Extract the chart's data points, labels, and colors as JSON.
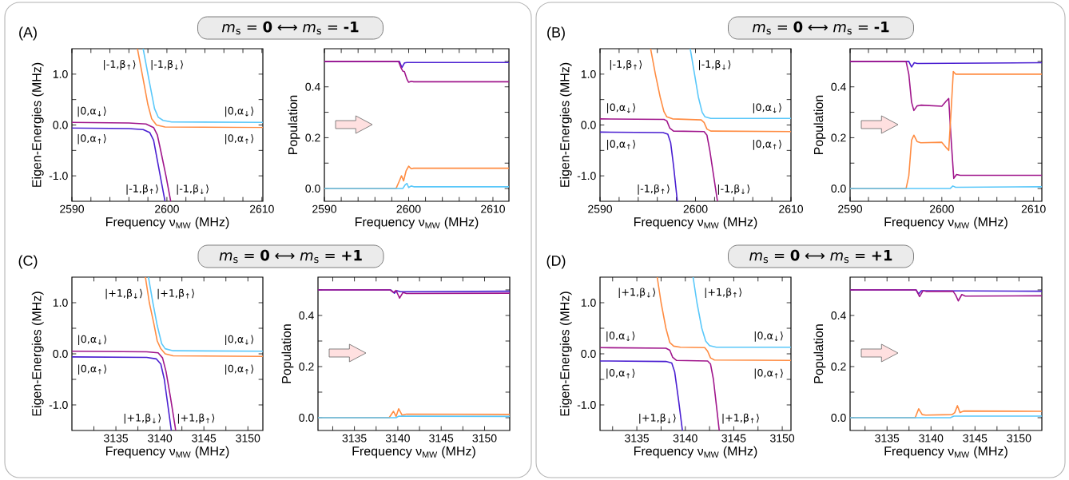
{
  "chart_data": [
    {
      "type": "line",
      "title": "(A)",
      "subtitle": "*m*$_{s}$ = **0** ⟷ *m*$_{s}$ = **-1**",
      "xlabel": "Frequency ν$_{MW}$ (MHz)",
      "ylabel": "Eigen-Energies (MHz)",
      "xlim": [
        2590,
        2610.1
      ],
      "ylim": [
        -1.5,
        1.5
      ],
      "xticks": [
        2590,
        {
          "value": 2592,
          "label": null
        },
        {
          "value": 2594,
          "label": null
        },
        {
          "value": 2596,
          "label": null
        },
        {
          "value": 2598,
          "label": null
        },
        2600,
        {
          "value": 2602,
          "label": null
        },
        {
          "value": 2604,
          "label": null
        },
        {
          "value": 2606,
          "label": null
        },
        {
          "value": 2608,
          "label": null
        },
        2610
      ],
      "yticks": [
        {
          "value": -1.0,
          "label": "-1.0"
        },
        {
          "value": -0.5,
          "label": null
        },
        {
          "value": 0,
          "label": "0.0"
        },
        {
          "value": 0.5,
          "label": null
        },
        {
          "value": 1.0,
          "label": "1.0"
        }
      ],
      "series": [
        {
          "color": "#4a1fd1",
          "x": [
            2590,
            2596,
            2597.5,
            2598.2,
            2598.6,
            2599.0,
            2599.4,
            2599.8
          ],
          "values": [
            -0.06,
            -0.07,
            -0.09,
            -0.15,
            -0.3,
            -0.7,
            -1.1,
            -1.5
          ]
        },
        {
          "color": "#a0168c",
          "x": [
            2590,
            2596,
            2597.8,
            2598.6,
            2599.0,
            2599.4,
            2599.9,
            2600.4
          ],
          "values": [
            0.05,
            0.04,
            0.02,
            -0.05,
            -0.2,
            -0.55,
            -1.0,
            -1.5
          ]
        },
        {
          "color": "#ff8c42",
          "x": [
            2596.9,
            2597.5,
            2598.0,
            2598.4,
            2598.9,
            2599.8,
            2610.1
          ],
          "values": [
            1.5,
            0.9,
            0.4,
            0.12,
            0.0,
            -0.04,
            -0.05
          ]
        },
        {
          "color": "#5ac8fa",
          "x": [
            2597.5,
            2598.1,
            2598.7,
            2599.1,
            2599.6,
            2600.5,
            2610.1
          ],
          "values": [
            1.5,
            0.9,
            0.32,
            0.15,
            0.09,
            0.06,
            0.05
          ]
        }
      ],
      "annotations": [
        "|-1,β$_{↑}$⟩",
        "|-1,β$_{↓}$⟩",
        "|0,α$_{↓}$⟩",
        "|0,α$_{↓}$⟩",
        "|0,α$_{↑}$⟩",
        "|0,α$_{↑}$⟩",
        "|-1,β$_{↑}$⟩",
        "|-1,β$_{↓}$⟩"
      ]
    },
    {
      "type": "line",
      "xlabel": "Frequency ν$_{MW}$ (MHz)",
      "ylabel": "Population",
      "xlim": [
        2590,
        2611.9
      ],
      "ylim": [
        -0.05,
        0.55
      ],
      "xticks": [
        2590,
        {
          "value": 2592,
          "label": null
        },
        {
          "value": 2594,
          "label": null
        },
        {
          "value": 2596,
          "label": null
        },
        {
          "value": 2598,
          "label": null
        },
        2600,
        {
          "value": 2602,
          "label": null
        },
        {
          "value": 2604,
          "label": null
        },
        {
          "value": 2606,
          "label": null
        },
        {
          "value": 2608,
          "label": null
        },
        2610
      ],
      "yticks": [
        {
          "value": 0,
          "label": "0.0"
        },
        {
          "value": 0.1,
          "label": null
        },
        {
          "value": 0.2,
          "label": "0.2"
        },
        {
          "value": 0.3,
          "label": null
        },
        {
          "value": 0.4,
          "label": "0.4"
        },
        {
          "value": 0.5,
          "label": null
        }
      ],
      "series": [
        {
          "color": "#4a1fd1",
          "x": [
            2590,
            2598.9,
            2599.2,
            2599.5,
            2599.8,
            2611.9
          ],
          "values": [
            0.5,
            0.5,
            0.476,
            0.494,
            0.496,
            0.496
          ]
        },
        {
          "color": "#a0168c",
          "x": [
            2590,
            2598.8,
            2599.1,
            2599.3,
            2599.5,
            2599.8,
            2600.0,
            2600.3,
            2600.6,
            2611.9
          ],
          "values": [
            0.5,
            0.5,
            0.475,
            0.462,
            0.46,
            0.43,
            0.418,
            0.422,
            0.42,
            0.42
          ]
        },
        {
          "color": "#ff8c42",
          "x": [
            2590,
            2598.5,
            2598.9,
            2599.15,
            2599.4,
            2599.7,
            2600.0,
            2600.3,
            2600.6,
            2611.9
          ],
          "values": [
            0,
            0,
            0.03,
            0.05,
            0.03,
            0.07,
            0.088,
            0.078,
            0.08,
            0.08
          ]
        },
        {
          "color": "#5ac8fa",
          "x": [
            2590,
            2599.3,
            2599.6,
            2599.8,
            2600.0,
            2600.3,
            2600.6,
            2611.9
          ],
          "values": [
            0,
            0,
            0.015,
            0.02,
            0.004,
            0.01,
            0.007,
            0.007
          ]
        }
      ]
    },
    {
      "type": "line",
      "title": "(B)",
      "subtitle": "*m*$_{s}$ = **0** ⟷ *m*$_{s}$ = **-1**",
      "xlabel": "Frequency ν$_{MW}$ (MHz)",
      "ylabel": "Eigen-Energies (MHz)",
      "xlim": [
        2590,
        2610
      ],
      "ylim": [
        -1.5,
        1.5
      ],
      "xticks": [
        2590,
        {
          "value": 2592,
          "label": null
        },
        {
          "value": 2594,
          "label": null
        },
        {
          "value": 2596,
          "label": null
        },
        {
          "value": 2598,
          "label": null
        },
        2600,
        {
          "value": 2602,
          "label": null
        },
        {
          "value": 2604,
          "label": null
        },
        {
          "value": 2606,
          "label": null
        },
        {
          "value": 2608,
          "label": null
        },
        2610
      ],
      "yticks": [
        {
          "value": -1.0,
          "label": "-1.0"
        },
        {
          "value": -0.5,
          "label": null
        },
        {
          "value": 0,
          "label": "0.0"
        },
        {
          "value": 0.5,
          "label": null
        },
        {
          "value": 1.0,
          "label": "1.0"
        }
      ],
      "series": [
        {
          "color": "#4a1fd1",
          "x": [
            2590,
            2596.6,
            2597.1,
            2597.4,
            2597.7,
            2598.1
          ],
          "values": [
            -0.14,
            -0.15,
            -0.18,
            -0.35,
            -0.8,
            -1.5
          ]
        },
        {
          "color": "#a0168c",
          "x": [
            2590,
            2596.7,
            2597.0,
            2597.3,
            2597.7,
            2600.9,
            2601.2,
            2601.5,
            2601.9,
            2602.3
          ],
          "values": [
            0.12,
            0.11,
            0.08,
            -0.06,
            -0.12,
            -0.13,
            -0.2,
            -0.5,
            -1.0,
            -1.5
          ]
        },
        {
          "color": "#ff8c42",
          "x": [
            2595.3,
            2595.8,
            2596.3,
            2596.7,
            2597.0,
            2597.6,
            2600.6,
            2600.9,
            2601.2,
            2601.6,
            2610
          ],
          "values": [
            1.5,
            1.0,
            0.55,
            0.26,
            0.16,
            0.12,
            0.1,
            0.05,
            -0.08,
            -0.12,
            -0.13
          ]
        },
        {
          "color": "#5ac8fa",
          "x": [
            2599.45,
            2599.9,
            2600.3,
            2600.7,
            2601.0,
            2601.6,
            2610
          ],
          "values": [
            1.5,
            1.0,
            0.55,
            0.25,
            0.16,
            0.13,
            0.13
          ]
        }
      ],
      "annotations": [
        "|-1,β$_{↑}$⟩",
        "|-1,β$_{↓}$⟩",
        "|0,α$_{↓}$⟩",
        "|0,α$_{↓}$⟩",
        "|0,α$_{↑}$⟩",
        "|0,α$_{↑}$⟩",
        "|-1,β$_{↑}$⟩",
        "|-1,β$_{↓}$⟩"
      ]
    },
    {
      "type": "line",
      "xlabel": "Frequency ν$_{MW}$ (MHz)",
      "ylabel": "Population",
      "xlim": [
        2590,
        2610.9
      ],
      "ylim": [
        -0.05,
        0.55
      ],
      "xticks": [
        2590,
        {
          "value": 2592,
          "label": null
        },
        {
          "value": 2594,
          "label": null
        },
        {
          "value": 2596,
          "label": null
        },
        {
          "value": 2598,
          "label": null
        },
        2600,
        {
          "value": 2602,
          "label": null
        },
        {
          "value": 2604,
          "label": null
        },
        {
          "value": 2606,
          "label": null
        },
        {
          "value": 2608,
          "label": null
        },
        2610
      ],
      "yticks": [
        {
          "value": 0,
          "label": "0.0"
        },
        {
          "value": 0.1,
          "label": null
        },
        {
          "value": 0.2,
          "label": "0.2"
        },
        {
          "value": 0.3,
          "label": null
        },
        {
          "value": 0.4,
          "label": "0.4"
        },
        {
          "value": 0.5,
          "label": null
        }
      ],
      "series": [
        {
          "color": "#4a1fd1",
          "x": [
            2590,
            2596.4,
            2596.7,
            2597.0,
            2597.3,
            2610.9
          ],
          "values": [
            0.5,
            0.5,
            0.478,
            0.495,
            0.492,
            0.495
          ]
        },
        {
          "color": "#a0168c",
          "x": [
            2590,
            2596.1,
            2596.4,
            2596.7,
            2596.95,
            2597.3,
            2597.7,
            2600.0,
            2600.5,
            2600.75,
            2601.0,
            2601.3,
            2601.6,
            2602,
            2610.9
          ],
          "values": [
            0.5,
            0.5,
            0.45,
            0.34,
            0.307,
            0.325,
            0.328,
            0.324,
            0.345,
            0.354,
            0.2,
            0.04,
            0.055,
            0.052,
            0.052
          ]
        },
        {
          "color": "#ff8c42",
          "x": [
            2590,
            2596.1,
            2596.4,
            2596.7,
            2596.95,
            2597.3,
            2597.7,
            2600.0,
            2600.5,
            2600.75,
            2601.0,
            2601.25,
            2601.5,
            2610.9
          ],
          "values": [
            0,
            0,
            0.05,
            0.19,
            0.21,
            0.185,
            0.18,
            0.182,
            0.16,
            0.15,
            0.3,
            0.46,
            0.45,
            0.45
          ]
        },
        {
          "color": "#5ac8fa",
          "x": [
            2590,
            2600.9,
            2601.2,
            2601.5,
            2610.9
          ],
          "values": [
            0,
            0,
            0.01,
            0.005,
            0.007
          ]
        }
      ]
    },
    {
      "type": "line",
      "title": "(C)",
      "subtitle": "*m*$_{s}$ = **0** ⟷ *m*$_{s}$ = **+1**",
      "xlabel": "Frequency ν$_{MW}$ (MHz)",
      "ylabel": "Eigen-Energies (MHz)",
      "xlim": [
        3130,
        3151.7
      ],
      "ylim": [
        -1.5,
        1.5
      ],
      "xticks": [
        {
          "value": 3132.5,
          "label": null
        },
        3135,
        {
          "value": 3137.5,
          "label": null
        },
        3140,
        {
          "value": 3142.5,
          "label": null
        },
        3145,
        {
          "value": 3147.5,
          "label": null
        },
        3150
      ],
      "yticks": [
        {
          "value": -1.0,
          "label": "-1.0"
        },
        {
          "value": -0.5,
          "label": null
        },
        {
          "value": 0,
          "label": "0.0"
        },
        {
          "value": 0.5,
          "label": null
        },
        {
          "value": 1.0,
          "label": "1.0"
        }
      ],
      "series": [
        {
          "color": "#4a1fd1",
          "x": [
            3130,
            3138.5,
            3139.6,
            3140.1,
            3140.5,
            3140.9,
            3141.3
          ],
          "values": [
            -0.06,
            -0.07,
            -0.1,
            -0.2,
            -0.5,
            -1.0,
            -1.5
          ]
        },
        {
          "color": "#a0168c",
          "x": [
            3130,
            3138.5,
            3139.8,
            3140.3,
            3140.7,
            3141.2,
            3141.8
          ],
          "values": [
            0.05,
            0.04,
            0.02,
            -0.08,
            -0.35,
            -0.85,
            -1.5
          ]
        },
        {
          "color": "#ff8c42",
          "x": [
            3138.35,
            3138.8,
            3139.3,
            3139.7,
            3140.1,
            3140.6,
            3141.5,
            3151.7
          ],
          "values": [
            1.5,
            1.0,
            0.6,
            0.25,
            0.1,
            0.0,
            -0.04,
            -0.05
          ]
        },
        {
          "color": "#5ac8fa",
          "x": [
            3138.7,
            3139.2,
            3139.7,
            3140.2,
            3140.6,
            3141.5,
            3151.7
          ],
          "values": [
            1.5,
            1.0,
            0.55,
            0.2,
            0.1,
            0.06,
            0.05
          ]
        }
      ],
      "annotations": [
        "|+1,β$_{↓}$⟩",
        "|+1,β$_{↑}$⟩",
        "|0,α$_{↓}$⟩",
        "|0,α$_{↓}$⟩",
        "|0,α$_{↑}$⟩",
        "|0,α$_{↑}$⟩",
        "|+1,β$_{↓}$⟩",
        "|+1,β$_{↑}$⟩"
      ]
    },
    {
      "type": "line",
      "xlabel": "Frequency ν$_{MW}$ (MHz)",
      "ylabel": "Population",
      "xlim": [
        3130.8,
        3152.9
      ],
      "ylim": [
        -0.05,
        0.55
      ],
      "xticks": [
        {
          "value": 3132.5,
          "label": null
        },
        3135,
        {
          "value": 3137.5,
          "label": null
        },
        3140,
        {
          "value": 3142.5,
          "label": null
        },
        3145,
        {
          "value": 3147.5,
          "label": null
        },
        3150
      ],
      "yticks": [
        {
          "value": 0,
          "label": "0.0"
        },
        {
          "value": 0.1,
          "label": null
        },
        {
          "value": 0.2,
          "label": "0.2"
        },
        {
          "value": 0.3,
          "label": null
        },
        {
          "value": 0.4,
          "label": "0.4"
        },
        {
          "value": 0.5,
          "label": null
        }
      ],
      "series": [
        {
          "color": "#4a1fd1",
          "x": [
            3130.8,
            3139.2,
            3139.6,
            3139.9,
            3140.3,
            3152.9
          ],
          "values": [
            0.5,
            0.5,
            0.487,
            0.497,
            0.493,
            0.495
          ]
        },
        {
          "color": "#a0168c",
          "x": [
            3130.8,
            3139.1,
            3139.5,
            3139.8,
            3140.2,
            3140.6,
            3141,
            3152.9
          ],
          "values": [
            0.5,
            0.5,
            0.49,
            0.498,
            0.468,
            0.49,
            0.486,
            0.487
          ]
        },
        {
          "color": "#ff8c42",
          "x": [
            3130.8,
            3139.0,
            3139.5,
            3139.8,
            3140.1,
            3140.5,
            3141,
            3152.9
          ],
          "values": [
            0,
            0,
            0.025,
            0.005,
            0.035,
            0.01,
            0.014,
            0.013
          ]
        },
        {
          "color": "#5ac8fa",
          "x": [
            3130.8,
            3139.8,
            3140.1,
            3152.9
          ],
          "values": [
            0,
            0,
            0.006,
            0.005
          ]
        }
      ]
    },
    {
      "type": "line",
      "title": "(D)",
      "subtitle": "*m*$_{s}$ = **0** ⟷ *m*$_{s}$ = **+1**",
      "xlabel": "Frequency ν$_{MW}$ (MHz)",
      "ylabel": "Eigen-Energies (MHz)",
      "xlim": [
        3131.2,
        3150.9
      ],
      "ylim": [
        -1.5,
        1.5
      ],
      "xticks": [
        {
          "value": 3132.5,
          "label": null
        },
        3135,
        {
          "value": 3137.5,
          "label": null
        },
        3140,
        {
          "value": 3142.5,
          "label": null
        },
        3145,
        {
          "value": 3147.5,
          "label": null
        },
        3150
      ],
      "yticks": [
        {
          "value": -1.0,
          "label": "-1.0"
        },
        {
          "value": -0.5,
          "label": null
        },
        {
          "value": 0,
          "label": "0.0"
        },
        {
          "value": 0.5,
          "label": null
        },
        {
          "value": 1.0,
          "label": "1.0"
        }
      ],
      "series": [
        {
          "color": "#4a1fd1",
          "x": [
            3131.2,
            3138.0,
            3138.6,
            3138.9,
            3139.3,
            3139.7
          ],
          "values": [
            -0.14,
            -0.15,
            -0.18,
            -0.35,
            -0.9,
            -1.5
          ]
        },
        {
          "color": "#a0168c",
          "x": [
            3131.2,
            3138.0,
            3138.4,
            3138.7,
            3139.1,
            3142.3,
            3142.6,
            3142.9,
            3143.2,
            3143.5
          ],
          "values": [
            0.12,
            0.11,
            0.07,
            -0.07,
            -0.13,
            -0.14,
            -0.2,
            -0.5,
            -1.0,
            -1.5
          ]
        },
        {
          "color": "#ff8c42",
          "x": [
            3137.1,
            3137.5,
            3138.0,
            3138.4,
            3138.8,
            3139.5,
            3142.0,
            3142.3,
            3142.6,
            3143.0,
            3150.9
          ],
          "values": [
            1.5,
            1.0,
            0.5,
            0.22,
            0.15,
            0.13,
            0.12,
            0.05,
            -0.08,
            -0.12,
            -0.13
          ]
        },
        {
          "color": "#5ac8fa",
          "x": [
            3140.8,
            3141.2,
            3141.7,
            3142.1,
            3142.5,
            3143.2,
            3150.9
          ],
          "values": [
            1.5,
            1.0,
            0.5,
            0.25,
            0.16,
            0.13,
            0.13
          ]
        }
      ],
      "annotations": [
        "|+1,β$_{↓}$⟩",
        "|+1,β$_{↑}$⟩",
        "|0,α$_{↓}$⟩",
        "|0,α$_{↓}$⟩",
        "|0,α$_{↑}$⟩",
        "|0,α$_{↑}$⟩",
        "|+1,β$_{↓}$⟩",
        "|+1,β$_{↑}$⟩"
      ]
    },
    {
      "type": "line",
      "xlabel": "Frequency ν$_{MW}$ (MHz)",
      "ylabel": "Population",
      "xlim": [
        3130.8,
        3152.6
      ],
      "ylim": [
        -0.05,
        0.55
      ],
      "xticks": [
        {
          "value": 3132.5,
          "label": null
        },
        3135,
        {
          "value": 3137.5,
          "label": null
        },
        3140,
        {
          "value": 3142.5,
          "label": null
        },
        3145,
        {
          "value": 3147.5,
          "label": null
        },
        3150
      ],
      "yticks": [
        {
          "value": 0,
          "label": "0.0"
        },
        {
          "value": 0.1,
          "label": null
        },
        {
          "value": 0.2,
          "label": "0.2"
        },
        {
          "value": 0.3,
          "label": null
        },
        {
          "value": 0.4,
          "label": "0.4"
        },
        {
          "value": 0.5,
          "label": null
        }
      ],
      "series": [
        {
          "color": "#4a1fd1",
          "x": [
            3130.8,
            3138.3,
            3138.6,
            3138.9,
            3152.6
          ],
          "values": [
            0.5,
            0.5,
            0.484,
            0.497,
            0.495
          ]
        },
        {
          "color": "#a0168c",
          "x": [
            3130.8,
            3138.3,
            3138.7,
            3139.1,
            3139.5,
            3142.5,
            3142.8,
            3143.1,
            3143.5,
            3143.9,
            3152.6
          ],
          "values": [
            0.5,
            0.5,
            0.474,
            0.497,
            0.494,
            0.495,
            0.48,
            0.457,
            0.482,
            0.476,
            0.477
          ]
        },
        {
          "color": "#ff8c42",
          "x": [
            3130.8,
            3138.2,
            3138.6,
            3139.0,
            3139.4,
            3142.4,
            3142.7,
            3143.0,
            3143.3,
            3143.7,
            3152.6
          ],
          "values": [
            0,
            0,
            0.035,
            0.012,
            0.01,
            0.012,
            0.02,
            0.047,
            0.02,
            0.026,
            0.025
          ]
        },
        {
          "color": "#5ac8fa",
          "x": [
            3130.8,
            3142.2,
            3142.6,
            3152.6
          ],
          "values": [
            0,
            0,
            0.006,
            0.006
          ]
        }
      ]
    }
  ]
}
